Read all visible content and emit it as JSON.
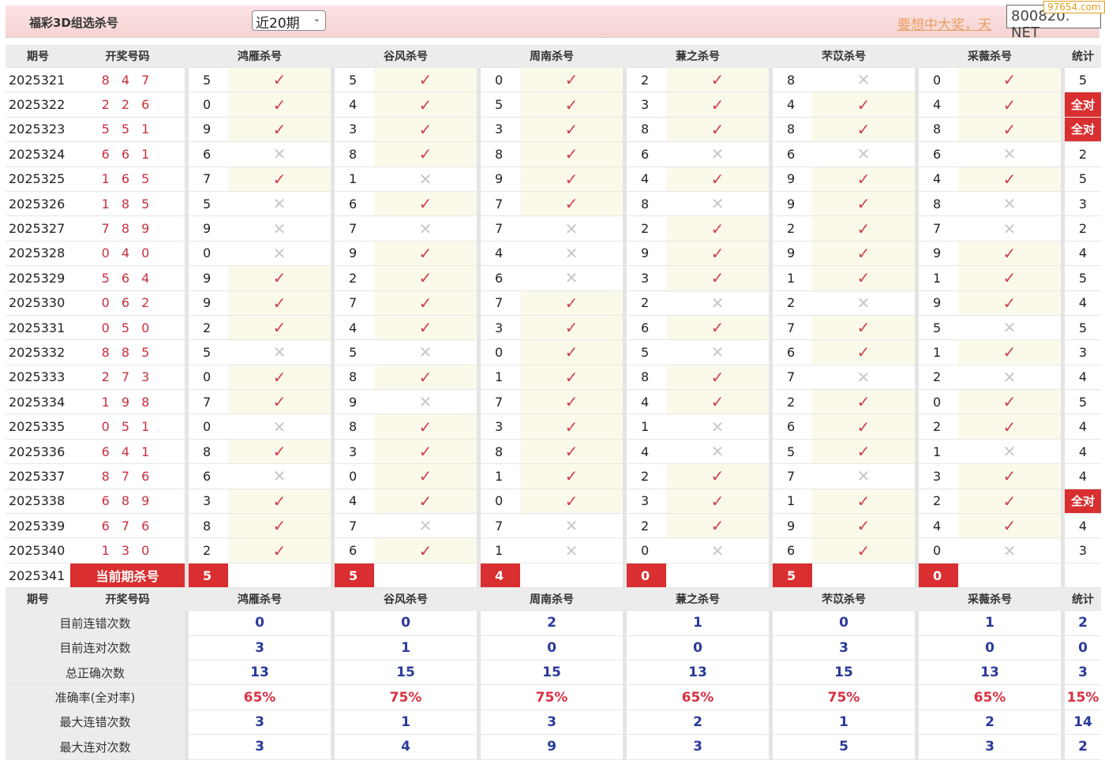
{
  "header": {
    "title": "福彩3D组选杀号",
    "period_select": "近20期",
    "promo_link": "要想中大奖，天",
    "site_badge": "800820. NET",
    "watermark": "97654.com"
  },
  "columns": {
    "issue": "期号",
    "winning": "开奖号码",
    "experts": [
      "鸿雁杀号",
      "谷风杀号",
      "周南杀号",
      "蒹之杀号",
      "芣苡杀号",
      "采薇杀号"
    ],
    "stat": "统计"
  },
  "colors": {
    "accent_red": "#d92f30",
    "check": "#d04050",
    "stat_blue": "#2a3a9a"
  },
  "rows": [
    {
      "issue": "2025321",
      "win": "8 4 7",
      "kills": [
        [
          "5",
          "check"
        ],
        [
          "5",
          "check"
        ],
        [
          "0",
          "check"
        ],
        [
          "2",
          "check"
        ],
        [
          "8",
          "cross"
        ],
        [
          "0",
          "check"
        ]
      ],
      "stat": "5"
    },
    {
      "issue": "2025322",
      "win": "2 2 6",
      "kills": [
        [
          "0",
          "check"
        ],
        [
          "4",
          "check"
        ],
        [
          "5",
          "check"
        ],
        [
          "3",
          "check"
        ],
        [
          "4",
          "check"
        ],
        [
          "4",
          "check"
        ]
      ],
      "stat": "全对"
    },
    {
      "issue": "2025323",
      "win": "5 5 1",
      "kills": [
        [
          "9",
          "check"
        ],
        [
          "3",
          "check"
        ],
        [
          "3",
          "check"
        ],
        [
          "8",
          "check"
        ],
        [
          "8",
          "check"
        ],
        [
          "8",
          "check"
        ]
      ],
      "stat": "全对"
    },
    {
      "issue": "2025324",
      "win": "6 6 1",
      "kills": [
        [
          "6",
          "cross"
        ],
        [
          "8",
          "check"
        ],
        [
          "8",
          "check"
        ],
        [
          "6",
          "cross"
        ],
        [
          "6",
          "cross"
        ],
        [
          "6",
          "cross"
        ]
      ],
      "stat": "2"
    },
    {
      "issue": "2025325",
      "win": "1 6 5",
      "kills": [
        [
          "7",
          "check"
        ],
        [
          "1",
          "cross"
        ],
        [
          "9",
          "check"
        ],
        [
          "4",
          "check"
        ],
        [
          "9",
          "check"
        ],
        [
          "4",
          "check"
        ]
      ],
      "stat": "5"
    },
    {
      "issue": "2025326",
      "win": "1 8 5",
      "kills": [
        [
          "5",
          "cross"
        ],
        [
          "6",
          "check"
        ],
        [
          "7",
          "check"
        ],
        [
          "8",
          "cross"
        ],
        [
          "9",
          "check"
        ],
        [
          "8",
          "cross"
        ]
      ],
      "stat": "3"
    },
    {
      "issue": "2025327",
      "win": "7 8 9",
      "kills": [
        [
          "9",
          "cross"
        ],
        [
          "7",
          "cross"
        ],
        [
          "7",
          "cross"
        ],
        [
          "2",
          "check"
        ],
        [
          "2",
          "check"
        ],
        [
          "7",
          "cross"
        ]
      ],
      "stat": "2"
    },
    {
      "issue": "2025328",
      "win": "0 4 0",
      "kills": [
        [
          "0",
          "cross"
        ],
        [
          "9",
          "check"
        ],
        [
          "4",
          "cross"
        ],
        [
          "9",
          "check"
        ],
        [
          "9",
          "check"
        ],
        [
          "9",
          "check"
        ]
      ],
      "stat": "4"
    },
    {
      "issue": "2025329",
      "win": "5 6 4",
      "kills": [
        [
          "9",
          "check"
        ],
        [
          "2",
          "check"
        ],
        [
          "6",
          "cross"
        ],
        [
          "3",
          "check"
        ],
        [
          "1",
          "check"
        ],
        [
          "1",
          "check"
        ]
      ],
      "stat": "5"
    },
    {
      "issue": "2025330",
      "win": "0 6 2",
      "kills": [
        [
          "9",
          "check"
        ],
        [
          "7",
          "check"
        ],
        [
          "7",
          "check"
        ],
        [
          "2",
          "cross"
        ],
        [
          "2",
          "cross"
        ],
        [
          "9",
          "check"
        ]
      ],
      "stat": "4"
    },
    {
      "issue": "2025331",
      "win": "0 5 0",
      "kills": [
        [
          "2",
          "check"
        ],
        [
          "4",
          "check"
        ],
        [
          "3",
          "check"
        ],
        [
          "6",
          "check"
        ],
        [
          "7",
          "check"
        ],
        [
          "5",
          "cross"
        ]
      ],
      "stat": "5"
    },
    {
      "issue": "2025332",
      "win": "8 8 5",
      "kills": [
        [
          "5",
          "cross"
        ],
        [
          "5",
          "cross"
        ],
        [
          "0",
          "check"
        ],
        [
          "5",
          "cross"
        ],
        [
          "6",
          "check"
        ],
        [
          "1",
          "check"
        ]
      ],
      "stat": "3"
    },
    {
      "issue": "2025333",
      "win": "2 7 3",
      "kills": [
        [
          "0",
          "check"
        ],
        [
          "8",
          "check"
        ],
        [
          "1",
          "check"
        ],
        [
          "8",
          "check"
        ],
        [
          "7",
          "cross"
        ],
        [
          "2",
          "cross"
        ]
      ],
      "stat": "4"
    },
    {
      "issue": "2025334",
      "win": "1 9 8",
      "kills": [
        [
          "7",
          "check"
        ],
        [
          "9",
          "cross"
        ],
        [
          "7",
          "check"
        ],
        [
          "4",
          "check"
        ],
        [
          "2",
          "check"
        ],
        [
          "0",
          "check"
        ]
      ],
      "stat": "5"
    },
    {
      "issue": "2025335",
      "win": "0 5 1",
      "kills": [
        [
          "0",
          "cross"
        ],
        [
          "8",
          "check"
        ],
        [
          "3",
          "check"
        ],
        [
          "1",
          "cross"
        ],
        [
          "6",
          "check"
        ],
        [
          "2",
          "check"
        ]
      ],
      "stat": "4"
    },
    {
      "issue": "2025336",
      "win": "6 4 1",
      "kills": [
        [
          "8",
          "check"
        ],
        [
          "3",
          "check"
        ],
        [
          "8",
          "check"
        ],
        [
          "4",
          "cross"
        ],
        [
          "5",
          "check"
        ],
        [
          "1",
          "cross"
        ]
      ],
      "stat": "4"
    },
    {
      "issue": "2025337",
      "win": "8 7 6",
      "kills": [
        [
          "6",
          "cross"
        ],
        [
          "0",
          "check"
        ],
        [
          "1",
          "check"
        ],
        [
          "2",
          "check"
        ],
        [
          "7",
          "cross"
        ],
        [
          "3",
          "check"
        ]
      ],
      "stat": "4"
    },
    {
      "issue": "2025338",
      "win": "6 8 9",
      "kills": [
        [
          "3",
          "check"
        ],
        [
          "4",
          "check"
        ],
        [
          "0",
          "check"
        ],
        [
          "3",
          "check"
        ],
        [
          "1",
          "check"
        ],
        [
          "2",
          "check"
        ]
      ],
      "stat": "全对"
    },
    {
      "issue": "2025339",
      "win": "6 7 6",
      "kills": [
        [
          "8",
          "check"
        ],
        [
          "7",
          "cross"
        ],
        [
          "7",
          "cross"
        ],
        [
          "2",
          "check"
        ],
        [
          "9",
          "check"
        ],
        [
          "4",
          "check"
        ]
      ],
      "stat": "4"
    },
    {
      "issue": "2025340",
      "win": "1 3 0",
      "kills": [
        [
          "2",
          "check"
        ],
        [
          "6",
          "check"
        ],
        [
          "1",
          "cross"
        ],
        [
          "0",
          "cross"
        ],
        [
          "6",
          "check"
        ],
        [
          "0",
          "cross"
        ]
      ],
      "stat": "3"
    }
  ],
  "current": {
    "issue": "2025341",
    "label": "当前期杀号",
    "kills": [
      "5",
      "5",
      "4",
      "0",
      "5",
      "0"
    ]
  },
  "stats": [
    {
      "label": "目前连错次数",
      "values": [
        "0",
        "0",
        "2",
        "1",
        "0",
        "1",
        "2"
      ]
    },
    {
      "label": "目前连对次数",
      "values": [
        "3",
        "1",
        "0",
        "0",
        "3",
        "0",
        "0"
      ]
    },
    {
      "label": "总正确次数",
      "values": [
        "13",
        "15",
        "15",
        "13",
        "15",
        "13",
        "3"
      ]
    },
    {
      "label": "准确率(全对率)",
      "values": [
        "65%",
        "75%",
        "75%",
        "65%",
        "75%",
        "65%",
        "15%"
      ],
      "percent": true
    },
    {
      "label": "最大连错次数",
      "values": [
        "3",
        "1",
        "3",
        "2",
        "1",
        "2",
        "14"
      ]
    },
    {
      "label": "最大连对次数",
      "values": [
        "3",
        "4",
        "9",
        "3",
        "5",
        "3",
        "2"
      ]
    }
  ]
}
